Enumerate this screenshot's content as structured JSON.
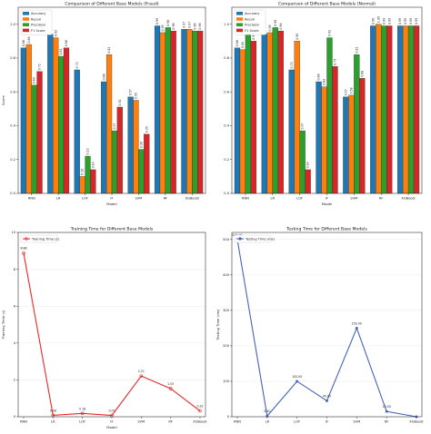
{
  "colors": {
    "Accuracy": "#1f77b4",
    "Recall": "#ff7f0e",
    "Precision": "#2ca02c",
    "F1 Score": "#d62728",
    "training_line": "#e8282b",
    "testing_line": "#4563b9"
  },
  "chart_data": [
    {
      "type": "bar",
      "title": "Comparison of Different Base Models (Fraud)",
      "xlabel": "Model",
      "ylabel": "Score",
      "ylim": [
        0,
        1.1
      ],
      "yticks": [
        "0.0",
        "0.2",
        "0.4",
        "0.6",
        "0.8",
        "1.0"
      ],
      "legend_position": "top-left",
      "categories": [
        "RNN",
        "LR",
        "LOF",
        "IF",
        "SVM",
        "RF",
        "XGBoost"
      ],
      "series": [
        {
          "name": "Accuracy",
          "values": [
            0.86,
            0.94,
            0.73,
            0.66,
            0.57,
            0.99,
            0.97
          ],
          "labels": [
            "0.86",
            "0.94",
            "0.73",
            "0.66",
            "0.57",
            "0.99",
            "0.97"
          ]
        },
        {
          "name": "Recall",
          "values": [
            0.88,
            0.92,
            0.1,
            0.82,
            0.55,
            0.95,
            0.97
          ],
          "labels": [
            "0.88",
            "0.92",
            "0.10",
            "0.82",
            "0.55",
            "0.95",
            "0.97"
          ]
        },
        {
          "name": "Precision",
          "values": [
            0.64,
            0.81,
            0.22,
            0.37,
            0.26,
            0.98,
            0.96
          ],
          "labels": [
            "0.64",
            "0.81",
            "0.22",
            "0.37",
            "0.26",
            "0.98",
            "0.96"
          ]
        },
        {
          "name": "F1 Score",
          "values": [
            0.72,
            0.86,
            0.14,
            0.51,
            0.35,
            0.96,
            0.96
          ],
          "labels": [
            "0.72",
            "0.86",
            "0.14",
            "0.51",
            "0.35",
            "0.96",
            "0.96"
          ]
        }
      ]
    },
    {
      "type": "bar",
      "title": "Comparison of Different Base Models (Normal)",
      "xlabel": "Model",
      "ylabel": "",
      "ylim": [
        0,
        1.1
      ],
      "yticks": [
        "0.0",
        "0.2",
        "0.4",
        "0.6",
        "0.8",
        "1.0"
      ],
      "legend_position": "top-left",
      "categories": [
        "RNN",
        "LR",
        "LOF",
        "IF",
        "SVM",
        "RF",
        "XGBoost"
      ],
      "series": [
        {
          "name": "Accuracy",
          "values": [
            0.86,
            0.94,
            0.73,
            0.66,
            0.57,
            0.99,
            0.99
          ],
          "labels": [
            "0.86",
            "0.94",
            "0.73",
            "0.66",
            "0.57",
            "0.99",
            "0.99"
          ]
        },
        {
          "name": "Recall",
          "values": [
            0.85,
            0.95,
            0.9,
            0.63,
            0.58,
            1.0,
            0.99
          ],
          "labels": [
            "0.85",
            "0.95",
            "0.90",
            "0.63",
            "0.58",
            "1.00",
            "0.99"
          ]
        },
        {
          "name": "Precision",
          "values": [
            0.96,
            0.98,
            0.37,
            0.92,
            0.82,
            0.99,
            0.99
          ],
          "labels": [
            "0.96",
            "0.98",
            "0.37",
            "0.92",
            "0.82",
            "0.99",
            "0.99"
          ]
        },
        {
          "name": "F1 Score",
          "values": [
            0.9,
            0.96,
            0.14,
            0.75,
            0.68,
            0.99,
            0.99
          ],
          "labels": [
            "0.90",
            "0.96",
            "0.14",
            "0.75",
            "0.68",
            "0.99",
            "0.99"
          ]
        }
      ]
    },
    {
      "type": "line",
      "title": "Training Time for Different Base Models",
      "xlabel": "Model",
      "ylabel": "Training Time (s)",
      "ylim": [
        0,
        10
      ],
      "yticks": [
        "0",
        "2",
        "4",
        "6",
        "8",
        "10"
      ],
      "legend_position": "top-left",
      "grid": true,
      "categories": [
        "RNN",
        "LR",
        "LOF",
        "IF",
        "SVM",
        "RF",
        "XGBoost"
      ],
      "series": [
        {
          "name": "Training Time (s)",
          "values": [
            8.88,
            0.08,
            0.18,
            0.07,
            2.21,
            1.53,
            0.32
          ],
          "labels": [
            "8.88",
            "0.08",
            "0.18",
            "0.07",
            "2.21",
            "1.53",
            "0.32"
          ]
        }
      ]
    },
    {
      "type": "line",
      "title": "Testing Time for Different Base Models",
      "xlabel": "",
      "ylabel": "Testing Time (ms)",
      "ylim": [
        0,
        520
      ],
      "yticks": [
        "0",
        "100",
        "200",
        "300",
        "400",
        "500"
      ],
      "legend_position": "top-left",
      "grid": true,
      "categories": [
        "RNN",
        "LR",
        "LOF",
        "IF",
        "SVM",
        "RF",
        "XGBoost"
      ],
      "series": [
        {
          "name": "Testing Time (ms)",
          "values": [
            500.0,
            2.0,
            100.0,
            45.0,
            250.0,
            15.0,
            0.0
          ],
          "labels": [
            "500.00",
            "2.00",
            "100.00",
            "45.00",
            "250.00",
            "15.00",
            ""
          ]
        }
      ]
    }
  ]
}
